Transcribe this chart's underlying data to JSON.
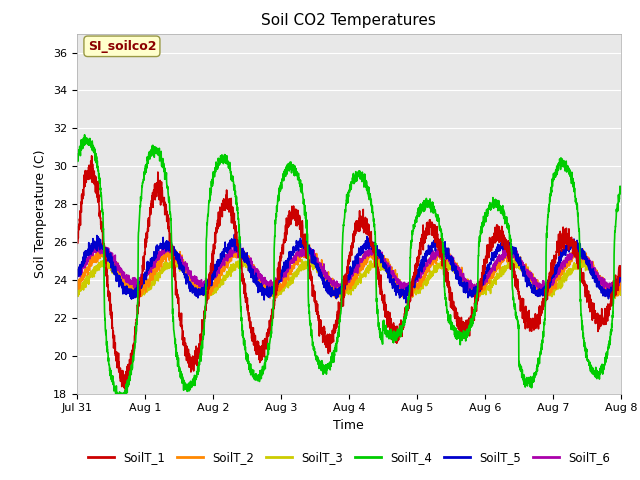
{
  "title": "Soil CO2 Temperatures",
  "xlabel": "Time",
  "ylabel": "Soil Temperature (C)",
  "ylim": [
    18,
    37
  ],
  "xlim": [
    0,
    8
  ],
  "annotation": "SI_soilco2",
  "annotation_box_color": "#ffffcc",
  "annotation_text_color": "#8b0000",
  "background_color": "#e8e8e8",
  "series_colors": {
    "SoilT_1": "#cc0000",
    "SoilT_2": "#ff8800",
    "SoilT_3": "#cccc00",
    "SoilT_4": "#00cc00",
    "SoilT_5": "#0000cc",
    "SoilT_6": "#aa00aa"
  },
  "xtick_labels": [
    "Jul 31",
    "Aug 1",
    "Aug 2",
    "Aug 3",
    "Aug 4",
    "Aug 5",
    "Aug 6",
    "Aug 7",
    "Aug 8"
  ],
  "ytick_values": [
    18,
    20,
    22,
    24,
    26,
    28,
    30,
    32,
    34,
    36
  ]
}
